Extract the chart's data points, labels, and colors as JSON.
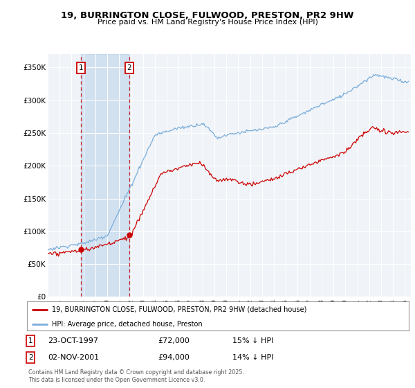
{
  "title": "19, BURRINGTON CLOSE, FULWOOD, PRESTON, PR2 9HW",
  "subtitle": "Price paid vs. HM Land Registry's House Price Index (HPI)",
  "ylabel_ticks": [
    "£0",
    "£50K",
    "£100K",
    "£150K",
    "£200K",
    "£250K",
    "£300K",
    "£350K"
  ],
  "ytick_values": [
    0,
    50000,
    100000,
    150000,
    200000,
    250000,
    300000,
    350000
  ],
  "ylim": [
    0,
    370000
  ],
  "xlim_start": 1995.0,
  "xlim_end": 2025.5,
  "legend_line1": "19, BURRINGTON CLOSE, FULWOOD, PRESTON, PR2 9HW (detached house)",
  "legend_line2": "HPI: Average price, detached house, Preston",
  "sale1_date": "23-OCT-1997",
  "sale1_price": "£72,000",
  "sale1_hpi": "15% ↓ HPI",
  "sale1_x": 1997.8,
  "sale1_y": 72000,
  "sale2_date": "02-NOV-2001",
  "sale2_price": "£94,000",
  "sale2_hpi": "14% ↓ HPI",
  "sale2_x": 2001.84,
  "sale2_y": 94000,
  "footnote": "Contains HM Land Registry data © Crown copyright and database right 2025.\nThis data is licensed under the Open Government Licence v3.0.",
  "red_color": "#cc0000",
  "blue_color": "#7aacda",
  "shade_color": "#ddeeff",
  "background_plot": "#f0f4f8",
  "background_fig": "#ffffff",
  "grid_color": "#ffffff"
}
